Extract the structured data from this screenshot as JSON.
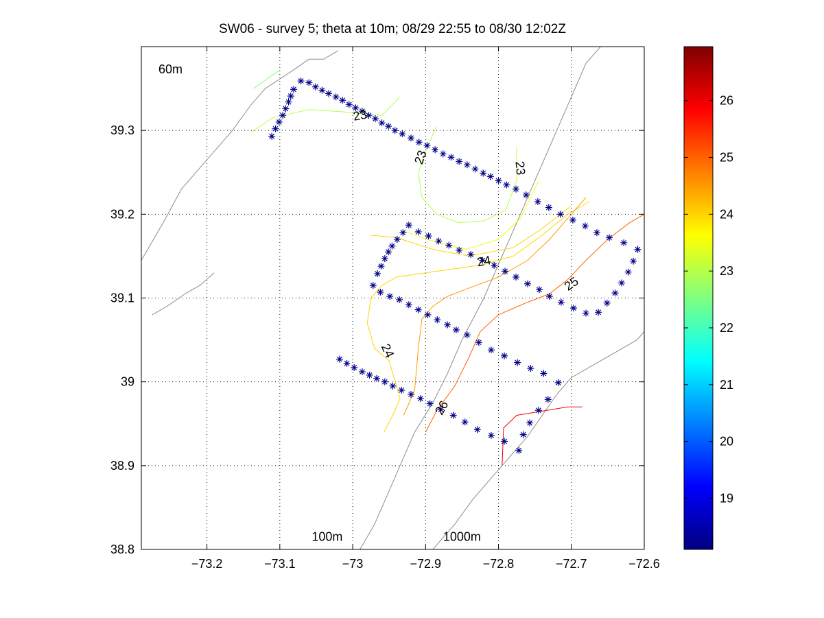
{
  "chart_data": {
    "type": "scatter",
    "title": "SW06 - survey 5; theta at 10m; 08/29 22:55 to 08/30 12:02Z",
    "xlim": [
      -73.29,
      -72.6
    ],
    "ylim": [
      38.8,
      39.4
    ],
    "xticks": [
      -73.2,
      -73.1,
      -73,
      -72.9,
      -72.8,
      -72.7,
      -72.6
    ],
    "xtick_labels": [
      "−73.2",
      "−73.1",
      "−73",
      "−72.9",
      "−72.8",
      "−72.7",
      "−72.6"
    ],
    "yticks": [
      38.8,
      38.9,
      39,
      39.1,
      39.2,
      39.3
    ],
    "ytick_labels": [
      "38.8",
      "38.9",
      "39",
      "39.1",
      "39.2",
      "39.3"
    ],
    "grid": true,
    "colorbar": {
      "colormap": "jet",
      "range": [
        18.1,
        26.95
      ],
      "ticks": [
        19,
        20,
        21,
        22,
        23,
        24,
        25,
        26
      ],
      "tick_labels": [
        "19",
        "20",
        "21",
        "22",
        "23",
        "24",
        "25",
        "26"
      ]
    },
    "marker_color": "#00008b",
    "stations": [
      [
        -73.111,
        39.293
      ],
      [
        -73.106,
        39.302
      ],
      [
        -73.101,
        39.31
      ],
      [
        -73.096,
        39.318
      ],
      [
        -73.092,
        39.326
      ],
      [
        -73.088,
        39.334
      ],
      [
        -73.085,
        39.341
      ],
      [
        -73.081,
        39.349
      ],
      [
        -73.071,
        39.359
      ],
      [
        -73.06,
        39.357
      ],
      [
        -73.051,
        39.352
      ],
      [
        -73.042,
        39.348
      ],
      [
        -73.033,
        39.344
      ],
      [
        -73.023,
        39.34
      ],
      [
        -73.014,
        39.336
      ],
      [
        -73.005,
        39.331
      ],
      [
        -72.996,
        39.327
      ],
      [
        -72.987,
        39.323
      ],
      [
        -72.978,
        39.318
      ],
      [
        -72.969,
        39.314
      ],
      [
        -72.96,
        39.309
      ],
      [
        -72.951,
        39.305
      ],
      [
        -72.942,
        39.3
      ],
      [
        -72.932,
        39.296
      ],
      [
        -72.92,
        39.291
      ],
      [
        -72.909,
        39.286
      ],
      [
        -72.898,
        39.282
      ],
      [
        -72.887,
        39.277
      ],
      [
        -72.876,
        39.272
      ],
      [
        -72.865,
        39.268
      ],
      [
        -72.854,
        39.263
      ],
      [
        -72.843,
        39.259
      ],
      [
        -72.832,
        39.254
      ],
      [
        -72.821,
        39.249
      ],
      [
        -72.811,
        39.245
      ],
      [
        -72.8,
        39.24
      ],
      [
        -72.789,
        39.235
      ],
      [
        -72.776,
        39.23
      ],
      [
        -72.762,
        39.223
      ],
      [
        -72.746,
        39.215
      ],
      [
        -72.731,
        39.208
      ],
      [
        -72.715,
        39.2
      ],
      [
        -72.698,
        39.193
      ],
      [
        -72.681,
        39.186
      ],
      [
        -72.665,
        39.178
      ],
      [
        -72.648,
        39.172
      ],
      [
        -72.628,
        39.166
      ],
      [
        -72.609,
        39.158
      ],
      [
        -72.615,
        39.144
      ],
      [
        -72.622,
        39.131
      ],
      [
        -72.631,
        39.118
      ],
      [
        -72.64,
        39.106
      ],
      [
        -72.651,
        39.094
      ],
      [
        -72.663,
        39.083
      ],
      [
        -72.68,
        39.082
      ],
      [
        -72.697,
        39.088
      ],
      [
        -72.714,
        39.095
      ],
      [
        -72.73,
        39.102
      ],
      [
        -72.744,
        39.11
      ],
      [
        -72.76,
        39.117
      ],
      [
        -72.776,
        39.125
      ],
      [
        -72.791,
        39.132
      ],
      [
        -72.806,
        39.139
      ],
      [
        -72.822,
        39.145
      ],
      [
        -72.838,
        39.152
      ],
      [
        -72.854,
        39.157
      ],
      [
        -72.868,
        39.163
      ],
      [
        -72.882,
        39.168
      ],
      [
        -72.896,
        39.174
      ],
      [
        -72.91,
        39.179
      ],
      [
        -72.923,
        39.187
      ],
      [
        -72.931,
        39.178
      ],
      [
        -72.939,
        39.17
      ],
      [
        -72.946,
        39.162
      ],
      [
        -72.951,
        39.155
      ],
      [
        -72.956,
        39.147
      ],
      [
        -72.961,
        39.138
      ],
      [
        -72.966,
        39.129
      ],
      [
        -72.972,
        39.115
      ],
      [
        -72.962,
        39.107
      ],
      [
        -72.949,
        39.102
      ],
      [
        -72.936,
        39.098
      ],
      [
        -72.923,
        39.092
      ],
      [
        -72.91,
        39.086
      ],
      [
        -72.897,
        39.08
      ],
      [
        -72.884,
        39.074
      ],
      [
        -72.87,
        39.068
      ],
      [
        -72.858,
        39.062
      ],
      [
        -72.843,
        39.056
      ],
      [
        -72.827,
        39.047
      ],
      [
        -72.81,
        39.038
      ],
      [
        -72.792,
        39.031
      ],
      [
        -72.774,
        39.023
      ],
      [
        -72.756,
        39.016
      ],
      [
        -72.738,
        39.01
      ],
      [
        -72.718,
        38.999
      ],
      [
        -72.732,
        38.979
      ],
      [
        -72.745,
        38.966
      ],
      [
        -72.757,
        38.951
      ],
      [
        -72.766,
        38.937
      ],
      [
        -72.772,
        38.918
      ],
      [
        -72.792,
        38.929
      ],
      [
        -72.81,
        38.936
      ],
      [
        -72.829,
        38.943
      ],
      [
        -72.846,
        38.952
      ],
      [
        -72.862,
        38.96
      ],
      [
        -72.879,
        38.967
      ],
      [
        -72.894,
        38.974
      ],
      [
        -72.907,
        38.98
      ],
      [
        -72.92,
        38.985
      ],
      [
        -72.933,
        38.99
      ],
      [
        -72.945,
        38.995
      ],
      [
        -72.956,
        39.0
      ],
      [
        -72.967,
        39.004
      ],
      [
        -72.977,
        39.008
      ],
      [
        -72.987,
        39.012
      ],
      [
        -72.998,
        39.017
      ],
      [
        -73.008,
        39.022
      ],
      [
        -73.018,
        39.027
      ]
    ],
    "contours": [
      {
        "level": 22.5,
        "points": [
          [
            -73.136,
            39.35
          ],
          [
            -73.12,
            39.36
          ],
          [
            -73.1,
            39.372
          ]
        ]
      },
      {
        "level": 23,
        "points": [
          [
            -73.139,
            39.298
          ],
          [
            -73.11,
            39.315
          ],
          [
            -73.06,
            39.325
          ],
          [
            -73.01,
            39.322
          ],
          [
            -72.96,
            39.318
          ],
          [
            -72.935,
            39.34
          ]
        ]
      },
      {
        "level": 23,
        "points": [
          [
            -72.885,
            39.305
          ],
          [
            -72.9,
            39.275
          ],
          [
            -72.91,
            39.25
          ],
          [
            -72.905,
            39.22
          ],
          [
            -72.885,
            39.2
          ],
          [
            -72.855,
            39.19
          ],
          [
            -72.82,
            39.192
          ],
          [
            -72.79,
            39.205
          ],
          [
            -72.775,
            39.24
          ],
          [
            -72.775,
            39.28
          ]
        ]
      },
      {
        "level": 23.5,
        "points": [
          [
            -72.93,
            39.18
          ],
          [
            -72.89,
            39.168
          ],
          [
            -72.845,
            39.158
          ],
          [
            -72.8,
            39.17
          ],
          [
            -72.77,
            39.195
          ],
          [
            -72.745,
            39.24
          ]
        ]
      },
      {
        "level": 24,
        "points": [
          [
            -72.975,
            39.175
          ],
          [
            -72.94,
            39.172
          ],
          [
            -72.89,
            39.158
          ],
          [
            -72.84,
            39.15
          ],
          [
            -72.78,
            39.16
          ],
          [
            -72.745,
            39.18
          ],
          [
            -72.7,
            39.21
          ]
        ]
      },
      {
        "level": 24,
        "points": [
          [
            -72.957,
            38.94
          ],
          [
            -72.945,
            38.96
          ],
          [
            -72.935,
            38.98
          ],
          [
            -72.95,
            39.025
          ],
          [
            -72.97,
            39.04
          ],
          [
            -72.98,
            39.07
          ],
          [
            -72.975,
            39.1
          ],
          [
            -72.96,
            39.115
          ],
          [
            -72.94,
            39.125
          ],
          [
            -72.9,
            39.13
          ],
          [
            -72.86,
            39.135
          ],
          [
            -72.82,
            39.14
          ],
          [
            -72.78,
            39.15
          ],
          [
            -72.74,
            39.175
          ],
          [
            -72.705,
            39.2
          ],
          [
            -72.675,
            39.215
          ]
        ]
      },
      {
        "level": 24.5,
        "points": [
          [
            -72.93,
            38.96
          ],
          [
            -72.915,
            38.99
          ],
          [
            -72.91,
            39.04
          ],
          [
            -72.905,
            39.075
          ],
          [
            -72.89,
            39.09
          ],
          [
            -72.87,
            39.102
          ],
          [
            -72.84,
            39.112
          ],
          [
            -72.8,
            39.125
          ],
          [
            -72.76,
            39.145
          ],
          [
            -72.73,
            39.17
          ],
          [
            -72.705,
            39.195
          ],
          [
            -72.68,
            39.22
          ]
        ]
      },
      {
        "level": 25,
        "points": [
          [
            -72.9,
            38.94
          ],
          [
            -72.885,
            38.965
          ],
          [
            -72.86,
            38.995
          ],
          [
            -72.84,
            39.03
          ],
          [
            -72.825,
            39.06
          ],
          [
            -72.8,
            39.08
          ],
          [
            -72.76,
            39.095
          ],
          [
            -72.73,
            39.105
          ],
          [
            -72.705,
            39.122
          ],
          [
            -72.68,
            39.145
          ],
          [
            -72.65,
            39.17
          ],
          [
            -72.62,
            39.19
          ],
          [
            -72.6,
            39.2
          ]
        ]
      },
      {
        "level": 26,
        "points": [
          [
            -72.795,
            38.9
          ],
          [
            -72.793,
            38.945
          ],
          [
            -72.775,
            38.96
          ],
          [
            -72.74,
            38.965
          ],
          [
            -72.705,
            38.97
          ],
          [
            -72.685,
            38.97
          ]
        ]
      }
    ],
    "contour_labels": [
      {
        "text": "23",
        "x": -72.99,
        "y": 39.318,
        "angle": -10
      },
      {
        "text": "23",
        "x": -72.907,
        "y": 39.268,
        "angle": -70
      },
      {
        "text": "23",
        "x": -72.77,
        "y": 39.255,
        "angle": 85
      },
      {
        "text": "24",
        "x": -72.82,
        "y": 39.144,
        "angle": -10
      },
      {
        "text": "25",
        "x": -72.7,
        "y": 39.117,
        "angle": -35
      },
      {
        "text": "24",
        "x": -72.952,
        "y": 39.037,
        "angle": 65
      },
      {
        "text": "26",
        "x": -72.878,
        "y": 38.969,
        "angle": -60
      }
    ],
    "isobath_labels": [
      {
        "text": "60m",
        "x": -73.25,
        "y": 39.373
      },
      {
        "text": "100m",
        "x": -73.035,
        "y": 38.815
      },
      {
        "text": "1000m",
        "x": -72.85,
        "y": 38.815
      }
    ],
    "isobaths": [
      {
        "name": "60m",
        "points": [
          [
            -73.29,
            39.145
          ],
          [
            -73.26,
            39.19
          ],
          [
            -73.235,
            39.23
          ],
          [
            -73.195,
            39.27
          ],
          [
            -73.165,
            39.3
          ],
          [
            -73.14,
            39.33
          ],
          [
            -73.12,
            39.35
          ],
          [
            -73.085,
            39.37
          ],
          [
            -73.06,
            39.385
          ],
          [
            -73.04,
            39.385
          ],
          [
            -73.02,
            39.395
          ]
        ]
      },
      {
        "name": "100m",
        "points": [
          [
            -72.99,
            38.8
          ],
          [
            -72.97,
            38.83
          ],
          [
            -72.96,
            38.85
          ],
          [
            -72.945,
            38.88
          ],
          [
            -72.93,
            38.91
          ],
          [
            -72.915,
            38.94
          ],
          [
            -72.89,
            38.975
          ],
          [
            -72.87,
            39.01
          ],
          [
            -72.85,
            39.05
          ],
          [
            -72.82,
            39.1
          ],
          [
            -72.8,
            39.14
          ],
          [
            -72.78,
            39.18
          ],
          [
            -72.76,
            39.22
          ],
          [
            -72.74,
            39.26
          ],
          [
            -72.72,
            39.3
          ],
          [
            -72.7,
            39.34
          ],
          [
            -72.68,
            39.38
          ],
          [
            -72.66,
            39.4
          ]
        ]
      },
      {
        "name": "1000m",
        "points": [
          [
            -72.89,
            38.8
          ],
          [
            -72.86,
            38.83
          ],
          [
            -72.835,
            38.86
          ],
          [
            -72.815,
            38.88
          ],
          [
            -72.79,
            38.905
          ],
          [
            -72.76,
            38.935
          ],
          [
            -72.74,
            38.96
          ],
          [
            -72.72,
            38.985
          ],
          [
            -72.7,
            39.005
          ],
          [
            -72.67,
            39.02
          ],
          [
            -72.64,
            39.035
          ],
          [
            -72.61,
            39.05
          ],
          [
            -72.6,
            39.06
          ]
        ]
      },
      {
        "name": "",
        "points": [
          [
            -73.275,
            39.08
          ],
          [
            -73.255,
            39.09
          ],
          [
            -73.23,
            39.105
          ],
          [
            -73.21,
            39.115
          ],
          [
            -73.19,
            39.13
          ]
        ]
      }
    ]
  }
}
